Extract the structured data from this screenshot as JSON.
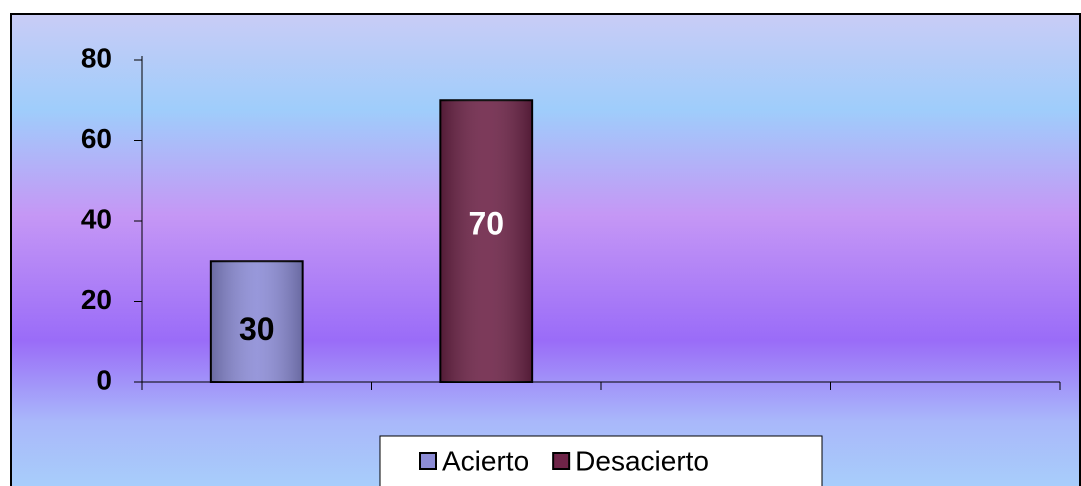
{
  "chart_data": {
    "type": "bar",
    "categories": [
      null,
      null,
      null,
      null
    ],
    "series": [
      {
        "name": "Acierto",
        "color": "#8c8cd6",
        "values": [
          30,
          null,
          null,
          null
        ]
      },
      {
        "name": "Desacierto",
        "color": "#6e2448",
        "values": [
          null,
          70,
          null,
          null
        ]
      }
    ],
    "ylim": [
      0,
      80
    ],
    "yticks": [
      0,
      20,
      40,
      60,
      80
    ],
    "legend": "bottom"
  }
}
